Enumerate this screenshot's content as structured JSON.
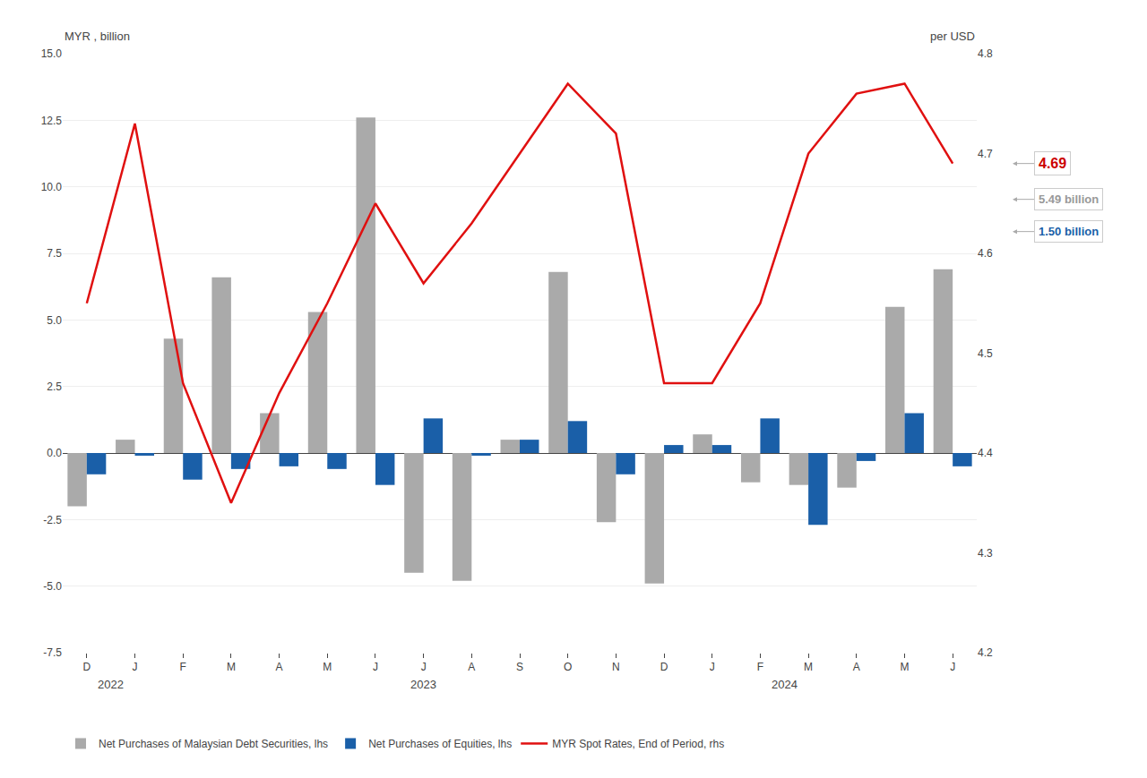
{
  "chart_data": {
    "type": "bar",
    "categories": [
      "D",
      "J",
      "F",
      "M",
      "A",
      "M",
      "J",
      "J",
      "A",
      "S",
      "O",
      "N",
      "D",
      "J",
      "F",
      "M",
      "A",
      "M",
      "J"
    ],
    "series": [
      {
        "name": "Net Purchases of Malaysian Debt Securities, lhs",
        "color": "#aaaaaa",
        "values": [
          -2.0,
          0.5,
          4.3,
          6.6,
          1.5,
          5.3,
          12.6,
          -4.5,
          -4.8,
          0.5,
          6.8,
          -2.6,
          -4.9,
          0.7,
          -1.1,
          -1.2,
          -1.3,
          5.49,
          6.9
        ]
      },
      {
        "name": "Net Purchases of Equities, lhs",
        "color": "#1a5fa8",
        "values": [
          -0.8,
          -0.1,
          -1.0,
          -0.6,
          -0.5,
          -0.6,
          -1.2,
          1.3,
          -0.1,
          0.5,
          1.2,
          -0.8,
          0.3,
          0.3,
          1.3,
          -2.7,
          -0.3,
          1.5,
          -0.5
        ]
      },
      {
        "name": "MYR Spot Rates, End of Period, rhs",
        "type": "line",
        "axis": "y2",
        "color": "#e01010",
        "values": [
          4.55,
          4.73,
          4.47,
          4.35,
          4.46,
          4.55,
          4.65,
          4.57,
          4.63,
          4.7,
          4.77,
          4.72,
          4.47,
          4.47,
          4.55,
          4.7,
          4.76,
          4.77,
          4.69
        ]
      }
    ],
    "ylim": [
      -7.5,
      15.0
    ],
    "yticks": [
      -7.5,
      {
        "value": -5.0,
        "label": "-5.0"
      },
      -2.5,
      {
        "value": 0.0,
        "label": "0.0"
      },
      2.5,
      {
        "value": 5.0,
        "label": "5.0"
      },
      7.5,
      {
        "value": 10.0,
        "label": "10.0"
      },
      12.5,
      {
        "value": 15.0,
        "label": "15.0"
      }
    ],
    "y2lim": [
      4.2,
      4.8
    ],
    "y2ticks": [
      4.2,
      4.3,
      4.4,
      4.5,
      4.6,
      4.7,
      4.8
    ],
    "ylabel": "MYR , billion",
    "y2label": "per USD",
    "grid": true,
    "legend": "bottom",
    "annotations": [
      {
        "text": "2022",
        "x": 0.5
      },
      {
        "text": "2023",
        "x": 7.0
      },
      {
        "text": "2024",
        "x": 14.5
      },
      {
        "text": "4.69",
        "color": "#cc0000"
      },
      {
        "text": "5.49 billion",
        "color": "#999999"
      },
      {
        "text": "1.50 billion",
        "color": "#1a5fa8"
      }
    ]
  }
}
